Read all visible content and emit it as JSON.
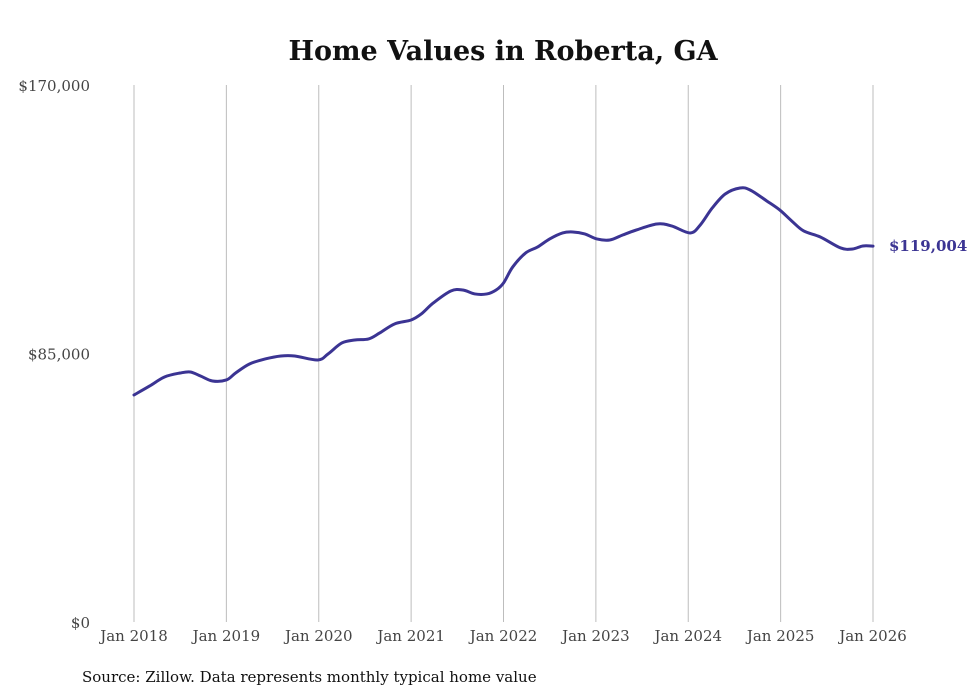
{
  "chart_data": {
    "type": "line",
    "title": "Home Values in Roberta, GA",
    "xlabel": "",
    "ylabel": "",
    "ylim": [
      0,
      170000
    ],
    "xlim": [
      2018,
      2026
    ],
    "y_ticks": [
      0,
      85000,
      170000
    ],
    "y_tick_labels": [
      "$0",
      "$85,000",
      "$170,000"
    ],
    "x_ticks": [
      2018,
      2019,
      2020,
      2021,
      2022,
      2023,
      2024,
      2025,
      2026
    ],
    "x_tick_labels": [
      "Jan 2018",
      "Jan 2019",
      "Jan 2020",
      "Jan 2021",
      "Jan 2022",
      "Jan 2023",
      "Jan 2024",
      "Jan 2025",
      "Jan 2026"
    ],
    "grid": "vertical",
    "line_color": "#3b3493",
    "end_label": "$119,004",
    "series": [
      {
        "name": "Typical home value",
        "x": [
          2018.0,
          2018.17,
          2018.33,
          2018.5,
          2018.61,
          2018.72,
          2018.85,
          2019.0,
          2019.1,
          2019.25,
          2019.42,
          2019.59,
          2019.74,
          2019.99,
          2020.1,
          2020.25,
          2020.39,
          2020.54,
          2020.66,
          2020.82,
          2021.0,
          2021.11,
          2021.24,
          2021.43,
          2021.56,
          2021.69,
          2021.82,
          2021.92,
          2022.0,
          2022.1,
          2022.24,
          2022.37,
          2022.5,
          2022.64,
          2022.75,
          2022.88,
          2023.01,
          2023.15,
          2023.29,
          2023.44,
          2023.66,
          2023.82,
          2024.02,
          2024.13,
          2024.26,
          2024.4,
          2024.56,
          2024.67,
          2024.85,
          2024.99,
          2025.12,
          2025.25,
          2025.43,
          2025.65,
          2025.78,
          2025.89,
          2026.0
        ],
        "values": [
          71870,
          74720,
          77570,
          78830,
          79150,
          77880,
          76300,
          76620,
          78830,
          81680,
          83270,
          84220,
          84220,
          82950,
          84850,
          88330,
          89280,
          89600,
          91500,
          94350,
          95610,
          97510,
          101000,
          104800,
          105100,
          103850,
          103850,
          105100,
          107330,
          112400,
          116830,
          118730,
          121260,
          123160,
          123470,
          122840,
          121260,
          120940,
          122520,
          124110,
          126010,
          125380,
          123160,
          125690,
          131070,
          135500,
          137400,
          136770,
          133290,
          130440,
          126960,
          123790,
          121890,
          118410,
          118090,
          119040,
          119004
        ]
      }
    ]
  },
  "source": "Source: Zillow. Data represents monthly typical home value"
}
